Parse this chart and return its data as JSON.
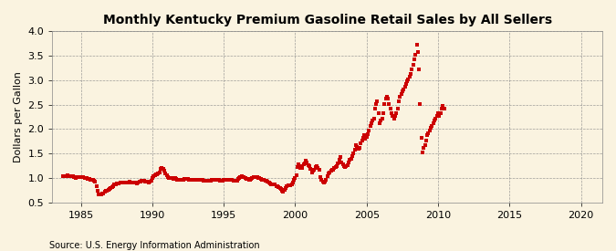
{
  "title": "Monthly Kentucky Premium Gasoline Retail Sales by All Sellers",
  "ylabel": "Dollars per Gallon",
  "source": "Source: U.S. Energy Information Administration",
  "bg_color": "#FAF3E0",
  "dot_color": "#CC0000",
  "xlim_start": 1983.0,
  "xlim_end": 2021.5,
  "ylim": [
    0.5,
    4.0
  ],
  "yticks": [
    0.5,
    1.0,
    1.5,
    2.0,
    2.5,
    3.0,
    3.5,
    4.0
  ],
  "xticks": [
    1985,
    1990,
    1995,
    2000,
    2005,
    2010,
    2015,
    2020
  ],
  "data": [
    [
      1983.75,
      1.04
    ],
    [
      1983.83,
      1.04
    ],
    [
      1983.92,
      1.03
    ],
    [
      1984.0,
      1.04
    ],
    [
      1984.08,
      1.05
    ],
    [
      1984.17,
      1.04
    ],
    [
      1984.25,
      1.03
    ],
    [
      1984.33,
      1.03
    ],
    [
      1984.42,
      1.03
    ],
    [
      1984.5,
      1.02
    ],
    [
      1984.58,
      1.01
    ],
    [
      1984.67,
      1.0
    ],
    [
      1984.75,
      1.01
    ],
    [
      1984.83,
      1.01
    ],
    [
      1984.92,
      1.01
    ],
    [
      1985.0,
      1.02
    ],
    [
      1985.08,
      1.02
    ],
    [
      1985.17,
      1.01
    ],
    [
      1985.25,
      1.0
    ],
    [
      1985.33,
      1.0
    ],
    [
      1985.42,
      0.99
    ],
    [
      1985.5,
      0.98
    ],
    [
      1985.58,
      0.98
    ],
    [
      1985.67,
      0.97
    ],
    [
      1985.75,
      0.96
    ],
    [
      1985.83,
      0.96
    ],
    [
      1985.92,
      0.95
    ],
    [
      1986.0,
      0.93
    ],
    [
      1986.08,
      0.83
    ],
    [
      1986.17,
      0.73
    ],
    [
      1986.25,
      0.67
    ],
    [
      1986.33,
      0.66
    ],
    [
      1986.42,
      0.67
    ],
    [
      1986.5,
      0.68
    ],
    [
      1986.58,
      0.69
    ],
    [
      1986.67,
      0.71
    ],
    [
      1986.75,
      0.73
    ],
    [
      1986.83,
      0.74
    ],
    [
      1986.92,
      0.76
    ],
    [
      1987.0,
      0.78
    ],
    [
      1987.08,
      0.8
    ],
    [
      1987.17,
      0.82
    ],
    [
      1987.25,
      0.84
    ],
    [
      1987.33,
      0.86
    ],
    [
      1987.42,
      0.87
    ],
    [
      1987.5,
      0.88
    ],
    [
      1987.58,
      0.89
    ],
    [
      1987.67,
      0.89
    ],
    [
      1987.75,
      0.9
    ],
    [
      1987.83,
      0.9
    ],
    [
      1987.92,
      0.91
    ],
    [
      1988.0,
      0.91
    ],
    [
      1988.08,
      0.91
    ],
    [
      1988.17,
      0.9
    ],
    [
      1988.25,
      0.9
    ],
    [
      1988.33,
      0.91
    ],
    [
      1988.42,
      0.92
    ],
    [
      1988.5,
      0.91
    ],
    [
      1988.58,
      0.91
    ],
    [
      1988.67,
      0.9
    ],
    [
      1988.75,
      0.9
    ],
    [
      1988.83,
      0.9
    ],
    [
      1988.92,
      0.89
    ],
    [
      1989.0,
      0.9
    ],
    [
      1989.08,
      0.92
    ],
    [
      1989.17,
      0.93
    ],
    [
      1989.25,
      0.94
    ],
    [
      1989.33,
      0.94
    ],
    [
      1989.42,
      0.94
    ],
    [
      1989.5,
      0.93
    ],
    [
      1989.58,
      0.92
    ],
    [
      1989.67,
      0.92
    ],
    [
      1989.75,
      0.91
    ],
    [
      1989.83,
      0.92
    ],
    [
      1989.92,
      0.95
    ],
    [
      1990.0,
      1.0
    ],
    [
      1990.08,
      1.04
    ],
    [
      1990.17,
      1.06
    ],
    [
      1990.25,
      1.07
    ],
    [
      1990.33,
      1.08
    ],
    [
      1990.42,
      1.1
    ],
    [
      1990.5,
      1.12
    ],
    [
      1990.58,
      1.18
    ],
    [
      1990.67,
      1.2
    ],
    [
      1990.75,
      1.18
    ],
    [
      1990.83,
      1.15
    ],
    [
      1990.92,
      1.1
    ],
    [
      1991.0,
      1.05
    ],
    [
      1991.08,
      1.02
    ],
    [
      1991.17,
      1.0
    ],
    [
      1991.25,
      1.0
    ],
    [
      1991.33,
      0.99
    ],
    [
      1991.42,
      0.99
    ],
    [
      1991.5,
      0.98
    ],
    [
      1991.58,
      0.99
    ],
    [
      1991.67,
      0.98
    ],
    [
      1991.75,
      0.97
    ],
    [
      1991.83,
      0.97
    ],
    [
      1991.92,
      0.97
    ],
    [
      1992.0,
      0.97
    ],
    [
      1992.08,
      0.97
    ],
    [
      1992.17,
      0.97
    ],
    [
      1992.25,
      0.98
    ],
    [
      1992.33,
      0.98
    ],
    [
      1992.42,
      0.98
    ],
    [
      1992.5,
      0.98
    ],
    [
      1992.58,
      0.97
    ],
    [
      1992.67,
      0.97
    ],
    [
      1992.75,
      0.97
    ],
    [
      1992.83,
      0.97
    ],
    [
      1992.92,
      0.97
    ],
    [
      1993.0,
      0.97
    ],
    [
      1993.08,
      0.97
    ],
    [
      1993.17,
      0.97
    ],
    [
      1993.25,
      0.97
    ],
    [
      1993.33,
      0.97
    ],
    [
      1993.42,
      0.96
    ],
    [
      1993.5,
      0.96
    ],
    [
      1993.58,
      0.95
    ],
    [
      1993.67,
      0.95
    ],
    [
      1993.75,
      0.94
    ],
    [
      1993.83,
      0.94
    ],
    [
      1993.92,
      0.95
    ],
    [
      1994.0,
      0.95
    ],
    [
      1994.08,
      0.95
    ],
    [
      1994.17,
      0.96
    ],
    [
      1994.25,
      0.96
    ],
    [
      1994.33,
      0.97
    ],
    [
      1994.42,
      0.97
    ],
    [
      1994.5,
      0.96
    ],
    [
      1994.58,
      0.96
    ],
    [
      1994.67,
      0.96
    ],
    [
      1994.75,
      0.95
    ],
    [
      1994.83,
      0.95
    ],
    [
      1994.92,
      0.95
    ],
    [
      1995.0,
      0.96
    ],
    [
      1995.08,
      0.97
    ],
    [
      1995.17,
      0.97
    ],
    [
      1995.25,
      0.97
    ],
    [
      1995.33,
      0.97
    ],
    [
      1995.42,
      0.97
    ],
    [
      1995.5,
      0.96
    ],
    [
      1995.58,
      0.96
    ],
    [
      1995.67,
      0.95
    ],
    [
      1995.75,
      0.95
    ],
    [
      1995.83,
      0.95
    ],
    [
      1995.92,
      0.95
    ],
    [
      1996.0,
      0.98
    ],
    [
      1996.08,
      1.0
    ],
    [
      1996.17,
      1.02
    ],
    [
      1996.25,
      1.03
    ],
    [
      1996.33,
      1.02
    ],
    [
      1996.42,
      1.01
    ],
    [
      1996.5,
      0.99
    ],
    [
      1996.58,
      0.98
    ],
    [
      1996.67,
      0.98
    ],
    [
      1996.75,
      0.97
    ],
    [
      1996.83,
      0.97
    ],
    [
      1996.92,
      0.98
    ],
    [
      1997.0,
      1.0
    ],
    [
      1997.08,
      1.01
    ],
    [
      1997.17,
      1.02
    ],
    [
      1997.25,
      1.02
    ],
    [
      1997.33,
      1.01
    ],
    [
      1997.42,
      1.0
    ],
    [
      1997.5,
      0.99
    ],
    [
      1997.58,
      0.98
    ],
    [
      1997.67,
      0.97
    ],
    [
      1997.75,
      0.97
    ],
    [
      1997.83,
      0.96
    ],
    [
      1997.92,
      0.95
    ],
    [
      1998.0,
      0.94
    ],
    [
      1998.08,
      0.92
    ],
    [
      1998.17,
      0.9
    ],
    [
      1998.25,
      0.88
    ],
    [
      1998.33,
      0.87
    ],
    [
      1998.42,
      0.87
    ],
    [
      1998.5,
      0.87
    ],
    [
      1998.58,
      0.86
    ],
    [
      1998.67,
      0.84
    ],
    [
      1998.75,
      0.83
    ],
    [
      1998.83,
      0.82
    ],
    [
      1998.92,
      0.8
    ],
    [
      1999.0,
      0.78
    ],
    [
      1999.08,
      0.73
    ],
    [
      1999.17,
      0.72
    ],
    [
      1999.25,
      0.76
    ],
    [
      1999.33,
      0.8
    ],
    [
      1999.42,
      0.84
    ],
    [
      1999.5,
      0.85
    ],
    [
      1999.58,
      0.85
    ],
    [
      1999.67,
      0.85
    ],
    [
      1999.75,
      0.87
    ],
    [
      1999.83,
      0.9
    ],
    [
      1999.92,
      0.96
    ],
    [
      2000.0,
      1.0
    ],
    [
      2000.08,
      1.05
    ],
    [
      2000.17,
      1.22
    ],
    [
      2000.25,
      1.28
    ],
    [
      2000.33,
      1.2
    ],
    [
      2000.42,
      1.25
    ],
    [
      2000.5,
      1.2
    ],
    [
      2000.58,
      1.27
    ],
    [
      2000.67,
      1.3
    ],
    [
      2000.75,
      1.35
    ],
    [
      2000.83,
      1.32
    ],
    [
      2000.92,
      1.26
    ],
    [
      2001.0,
      1.25
    ],
    [
      2001.08,
      1.18
    ],
    [
      2001.17,
      1.12
    ],
    [
      2001.25,
      1.14
    ],
    [
      2001.33,
      1.17
    ],
    [
      2001.42,
      1.22
    ],
    [
      2001.5,
      1.25
    ],
    [
      2001.58,
      1.2
    ],
    [
      2001.67,
      1.16
    ],
    [
      2001.75,
      1.02
    ],
    [
      2001.83,
      0.97
    ],
    [
      2001.92,
      0.93
    ],
    [
      2002.0,
      0.91
    ],
    [
      2002.08,
      0.93
    ],
    [
      2002.17,
      0.97
    ],
    [
      2002.25,
      1.04
    ],
    [
      2002.33,
      1.1
    ],
    [
      2002.42,
      1.12
    ],
    [
      2002.5,
      1.14
    ],
    [
      2002.58,
      1.16
    ],
    [
      2002.67,
      1.17
    ],
    [
      2002.75,
      1.2
    ],
    [
      2002.83,
      1.22
    ],
    [
      2002.92,
      1.24
    ],
    [
      2003.0,
      1.3
    ],
    [
      2003.08,
      1.38
    ],
    [
      2003.17,
      1.43
    ],
    [
      2003.25,
      1.32
    ],
    [
      2003.33,
      1.27
    ],
    [
      2003.42,
      1.24
    ],
    [
      2003.5,
      1.22
    ],
    [
      2003.58,
      1.24
    ],
    [
      2003.67,
      1.26
    ],
    [
      2003.75,
      1.32
    ],
    [
      2003.83,
      1.37
    ],
    [
      2003.92,
      1.4
    ],
    [
      2004.0,
      1.44
    ],
    [
      2004.08,
      1.5
    ],
    [
      2004.17,
      1.57
    ],
    [
      2004.25,
      1.67
    ],
    [
      2004.33,
      1.64
    ],
    [
      2004.42,
      1.6
    ],
    [
      2004.5,
      1.62
    ],
    [
      2004.58,
      1.7
    ],
    [
      2004.67,
      1.77
    ],
    [
      2004.75,
      1.82
    ],
    [
      2004.83,
      1.87
    ],
    [
      2004.92,
      1.8
    ],
    [
      2005.0,
      1.84
    ],
    [
      2005.08,
      1.9
    ],
    [
      2005.17,
      1.97
    ],
    [
      2005.25,
      2.07
    ],
    [
      2005.33,
      2.12
    ],
    [
      2005.42,
      2.17
    ],
    [
      2005.5,
      2.22
    ],
    [
      2005.58,
      2.42
    ],
    [
      2005.67,
      2.52
    ],
    [
      2005.75,
      2.57
    ],
    [
      2005.83,
      2.32
    ],
    [
      2005.92,
      2.12
    ],
    [
      2006.0,
      2.17
    ],
    [
      2006.08,
      2.22
    ],
    [
      2006.17,
      2.32
    ],
    [
      2006.25,
      2.52
    ],
    [
      2006.33,
      2.62
    ],
    [
      2006.42,
      2.67
    ],
    [
      2006.5,
      2.62
    ],
    [
      2006.58,
      2.52
    ],
    [
      2006.67,
      2.42
    ],
    [
      2006.75,
      2.32
    ],
    [
      2006.83,
      2.27
    ],
    [
      2006.92,
      2.22
    ],
    [
      2007.0,
      2.27
    ],
    [
      2007.08,
      2.32
    ],
    [
      2007.17,
      2.42
    ],
    [
      2007.25,
      2.57
    ],
    [
      2007.33,
      2.67
    ],
    [
      2007.42,
      2.72
    ],
    [
      2007.5,
      2.77
    ],
    [
      2007.58,
      2.82
    ],
    [
      2007.67,
      2.87
    ],
    [
      2007.75,
      2.92
    ],
    [
      2007.83,
      2.97
    ],
    [
      2007.92,
      3.02
    ],
    [
      2008.0,
      3.07
    ],
    [
      2008.08,
      3.12
    ],
    [
      2008.17,
      3.22
    ],
    [
      2008.25,
      3.32
    ],
    [
      2008.33,
      3.42
    ],
    [
      2008.42,
      3.52
    ],
    [
      2008.5,
      3.72
    ],
    [
      2008.58,
      3.57
    ],
    [
      2008.67,
      3.22
    ],
    [
      2008.75,
      2.52
    ],
    [
      2008.83,
      1.82
    ],
    [
      2008.92,
      1.52
    ],
    [
      2009.0,
      1.62
    ],
    [
      2009.08,
      1.67
    ],
    [
      2009.17,
      1.77
    ],
    [
      2009.25,
      1.87
    ],
    [
      2009.33,
      1.92
    ],
    [
      2009.42,
      1.97
    ],
    [
      2009.5,
      2.02
    ],
    [
      2009.58,
      2.07
    ],
    [
      2009.67,
      2.12
    ],
    [
      2009.75,
      2.17
    ],
    [
      2009.83,
      2.22
    ],
    [
      2009.92,
      2.27
    ],
    [
      2010.0,
      2.32
    ],
    [
      2010.08,
      2.27
    ],
    [
      2010.17,
      2.32
    ],
    [
      2010.25,
      2.42
    ],
    [
      2010.33,
      2.47
    ],
    [
      2010.42,
      2.42
    ]
  ]
}
